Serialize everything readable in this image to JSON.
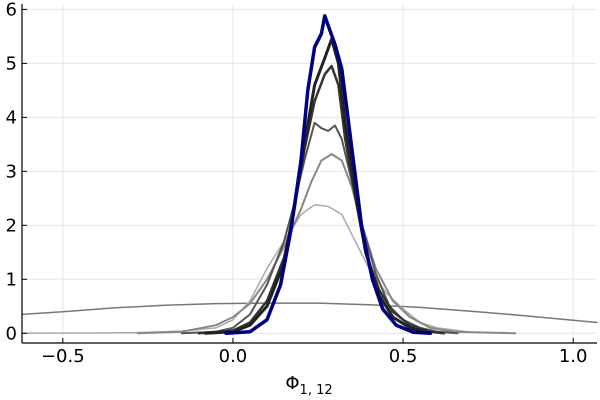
{
  "chart_data": {
    "type": "line",
    "xlabel": "Φ",
    "xlabel_subscript": "1, 12",
    "ylabel": "",
    "xlim": [
      -0.62,
      1.07
    ],
    "ylim": [
      -0.18,
      6.1
    ],
    "xticks": [
      -0.5,
      0.0,
      0.5,
      1.0
    ],
    "xtick_labels": [
      "−0.5",
      "0.0",
      "0.5",
      "1.0"
    ],
    "yticks": [
      0,
      1,
      2,
      3,
      4,
      5,
      6
    ],
    "ytick_labels": [
      "0",
      "1",
      "2",
      "3",
      "4",
      "5",
      "6"
    ],
    "grid": true,
    "legend": "none",
    "series": [
      {
        "color": "#777777",
        "width": 1.5,
        "points": [
          [
            -0.62,
            0.35
          ],
          [
            -0.5,
            0.4
          ],
          [
            -0.35,
            0.47
          ],
          [
            -0.2,
            0.52
          ],
          [
            -0.05,
            0.55
          ],
          [
            0.1,
            0.56
          ],
          [
            0.25,
            0.56
          ],
          [
            0.4,
            0.53
          ],
          [
            0.55,
            0.48
          ],
          [
            0.7,
            0.41
          ],
          [
            0.85,
            0.33
          ],
          [
            1.0,
            0.24
          ],
          [
            1.07,
            0.2
          ]
        ]
      },
      {
        "color": "#aaaaaa",
        "width": 1.5,
        "points": [
          [
            -0.62,
            0.0
          ],
          [
            -0.3,
            0.01
          ],
          [
            -0.25,
            0.02
          ],
          [
            -0.15,
            0.04
          ],
          [
            -0.05,
            0.1
          ],
          [
            0.0,
            0.25
          ],
          [
            0.05,
            0.6
          ],
          [
            0.1,
            1.2
          ],
          [
            0.15,
            1.7
          ],
          [
            0.2,
            2.2
          ],
          [
            0.24,
            2.38
          ],
          [
            0.28,
            2.35
          ],
          [
            0.32,
            2.2
          ],
          [
            0.36,
            1.7
          ],
          [
            0.4,
            1.2
          ],
          [
            0.45,
            0.75
          ],
          [
            0.5,
            0.45
          ],
          [
            0.55,
            0.2
          ],
          [
            0.6,
            0.1
          ],
          [
            0.7,
            0.02
          ],
          [
            0.83,
            0.0
          ]
        ]
      },
      {
        "color": "#888888",
        "width": 2,
        "points": [
          [
            -0.28,
            0.0
          ],
          [
            -0.15,
            0.03
          ],
          [
            -0.05,
            0.15
          ],
          [
            0.0,
            0.3
          ],
          [
            0.05,
            0.55
          ],
          [
            0.1,
            1.0
          ],
          [
            0.15,
            1.6
          ],
          [
            0.2,
            2.3
          ],
          [
            0.23,
            2.8
          ],
          [
            0.26,
            3.2
          ],
          [
            0.29,
            3.32
          ],
          [
            0.32,
            3.2
          ],
          [
            0.35,
            2.7
          ],
          [
            0.38,
            2.0
          ],
          [
            0.42,
            1.2
          ],
          [
            0.47,
            0.6
          ],
          [
            0.52,
            0.3
          ],
          [
            0.58,
            0.1
          ],
          [
            0.65,
            0.03
          ],
          [
            0.83,
            0.0
          ]
        ]
      },
      {
        "color": "#555555",
        "width": 2,
        "points": [
          [
            -0.15,
            0.0
          ],
          [
            -0.05,
            0.03
          ],
          [
            0.0,
            0.1
          ],
          [
            0.05,
            0.35
          ],
          [
            0.1,
            0.9
          ],
          [
            0.15,
            1.7
          ],
          [
            0.18,
            2.4
          ],
          [
            0.21,
            3.2
          ],
          [
            0.24,
            3.9
          ],
          [
            0.26,
            3.8
          ],
          [
            0.28,
            3.75
          ],
          [
            0.3,
            3.85
          ],
          [
            0.32,
            3.6
          ],
          [
            0.35,
            2.8
          ],
          [
            0.38,
            2.0
          ],
          [
            0.42,
            1.1
          ],
          [
            0.46,
            0.5
          ],
          [
            0.5,
            0.25
          ],
          [
            0.55,
            0.1
          ],
          [
            0.6,
            0.03
          ],
          [
            0.66,
            0.0
          ]
        ]
      },
      {
        "color": "#333333",
        "width": 2.5,
        "points": [
          [
            -0.1,
            0.0
          ],
          [
            0.0,
            0.05
          ],
          [
            0.05,
            0.2
          ],
          [
            0.1,
            0.6
          ],
          [
            0.15,
            1.4
          ],
          [
            0.18,
            2.3
          ],
          [
            0.21,
            3.4
          ],
          [
            0.24,
            4.3
          ],
          [
            0.27,
            4.8
          ],
          [
            0.29,
            4.95
          ],
          [
            0.31,
            4.6
          ],
          [
            0.33,
            3.6
          ],
          [
            0.36,
            2.5
          ],
          [
            0.39,
            1.5
          ],
          [
            0.43,
            0.8
          ],
          [
            0.47,
            0.4
          ],
          [
            0.52,
            0.15
          ],
          [
            0.58,
            0.03
          ],
          [
            0.62,
            0.0
          ]
        ]
      },
      {
        "color": "#222222",
        "width": 3,
        "points": [
          [
            -0.08,
            0.0
          ],
          [
            0.0,
            0.03
          ],
          [
            0.05,
            0.15
          ],
          [
            0.1,
            0.5
          ],
          [
            0.15,
            1.3
          ],
          [
            0.18,
            2.3
          ],
          [
            0.21,
            3.5
          ],
          [
            0.24,
            4.6
          ],
          [
            0.27,
            5.1
          ],
          [
            0.29,
            5.45
          ],
          [
            0.31,
            5.0
          ],
          [
            0.33,
            3.9
          ],
          [
            0.36,
            2.6
          ],
          [
            0.39,
            1.5
          ],
          [
            0.43,
            0.7
          ],
          [
            0.47,
            0.3
          ],
          [
            0.52,
            0.1
          ],
          [
            0.58,
            0.0
          ]
        ]
      },
      {
        "color": "#000080",
        "width": 3.5,
        "points": [
          [
            -0.02,
            0.0
          ],
          [
            0.05,
            0.03
          ],
          [
            0.1,
            0.25
          ],
          [
            0.14,
            0.9
          ],
          [
            0.17,
            1.9
          ],
          [
            0.2,
            3.2
          ],
          [
            0.22,
            4.5
          ],
          [
            0.24,
            5.3
          ],
          [
            0.26,
            5.55
          ],
          [
            0.27,
            5.88
          ],
          [
            0.28,
            5.7
          ],
          [
            0.3,
            5.35
          ],
          [
            0.32,
            4.9
          ],
          [
            0.34,
            3.9
          ],
          [
            0.36,
            2.9
          ],
          [
            0.38,
            1.9
          ],
          [
            0.41,
            1.0
          ],
          [
            0.44,
            0.45
          ],
          [
            0.48,
            0.15
          ],
          [
            0.53,
            0.02
          ],
          [
            0.58,
            0.0
          ]
        ]
      }
    ]
  }
}
